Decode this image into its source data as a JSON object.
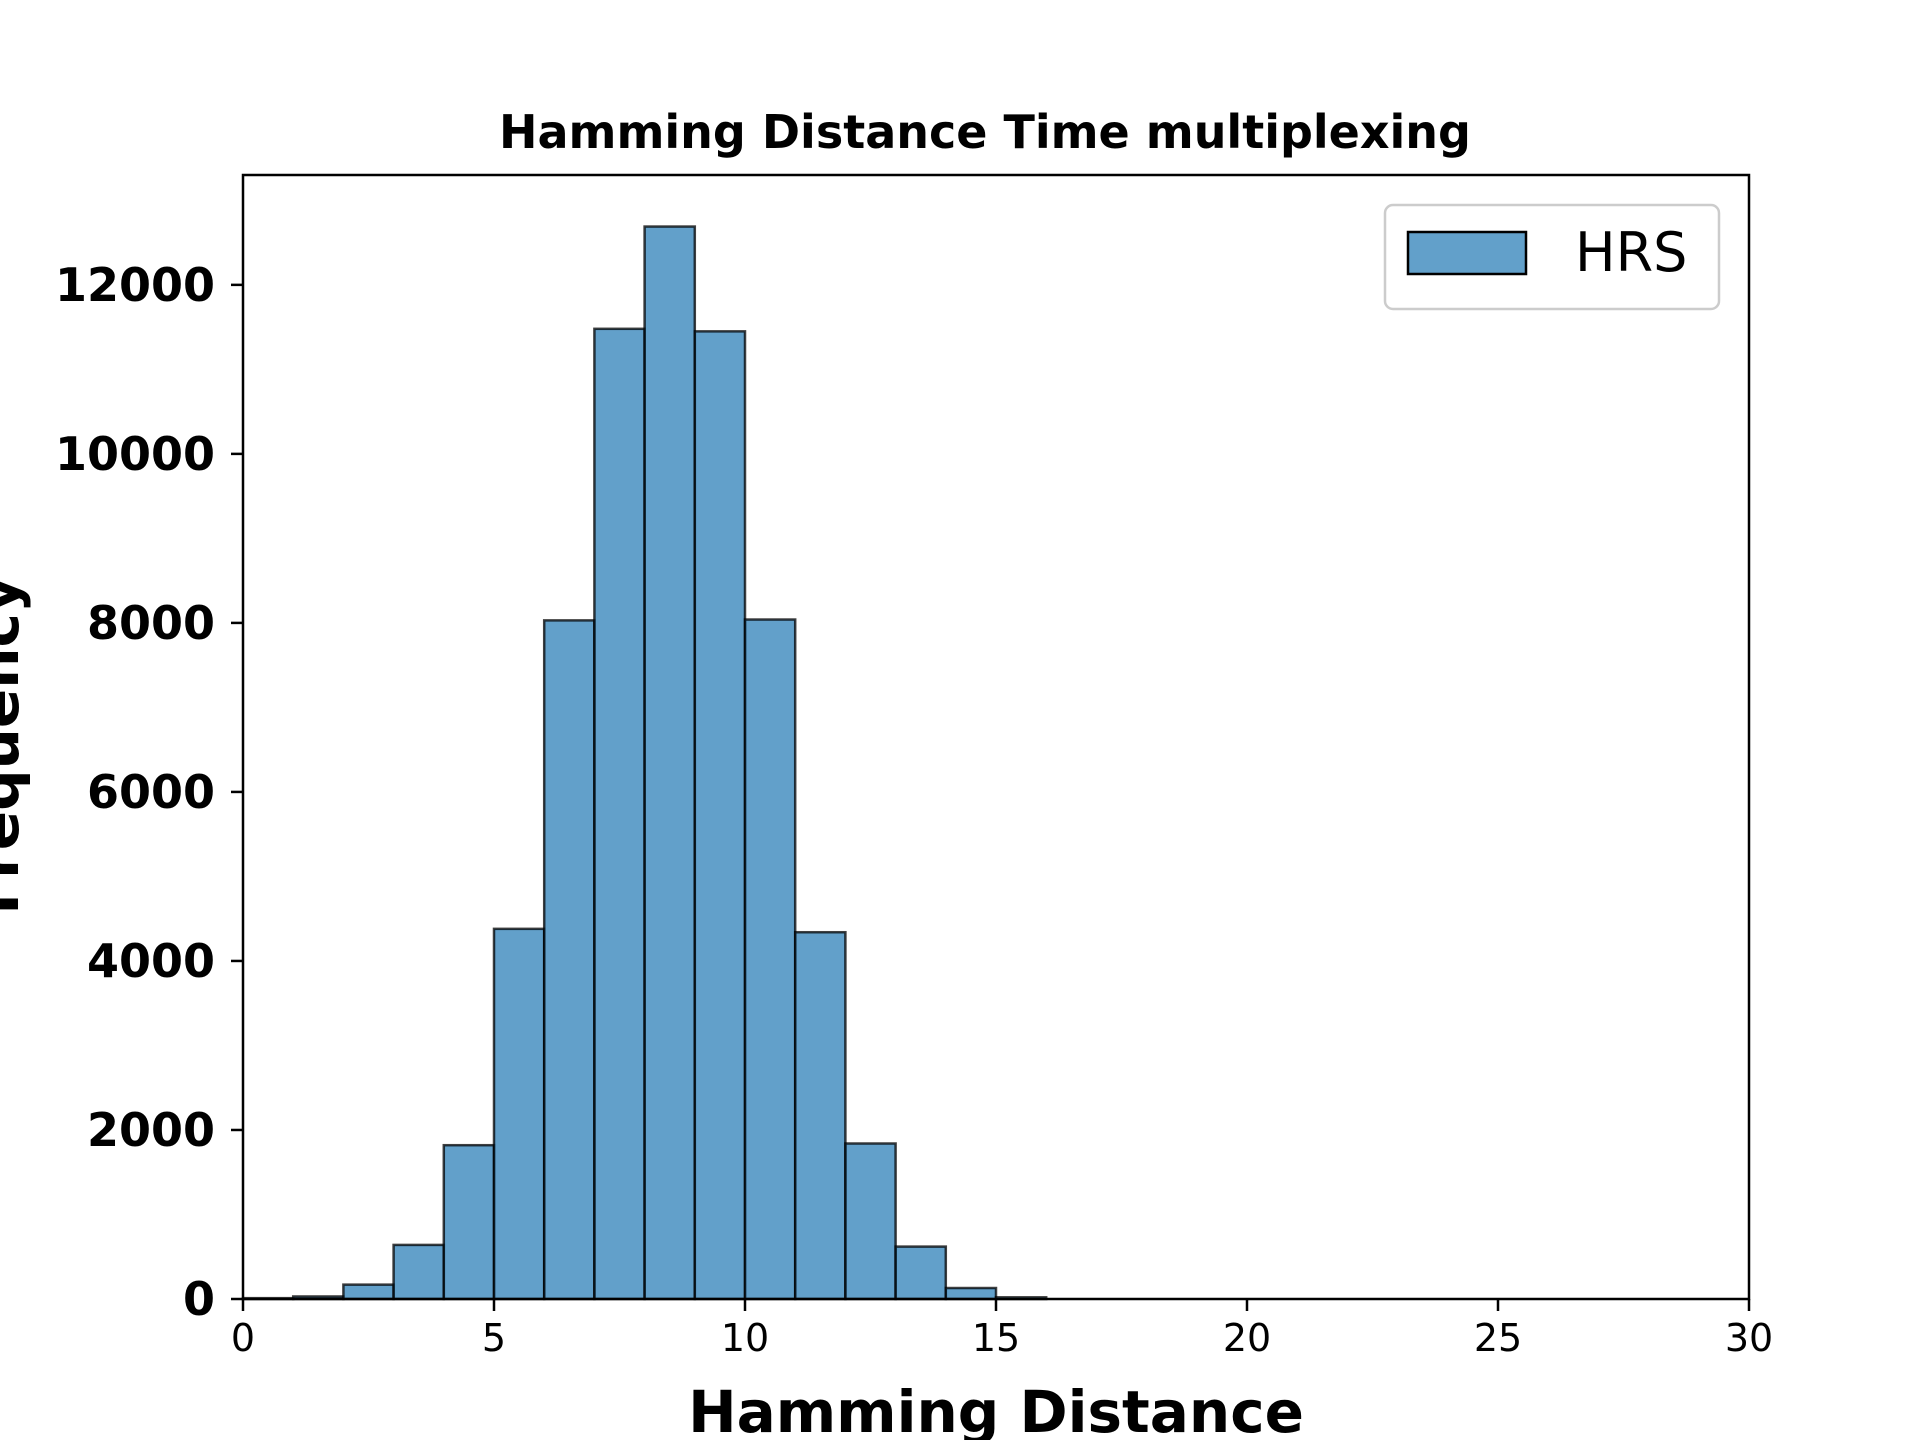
{
  "chart_data": {
    "type": "bar",
    "title": "Hamming Distance Time multiplexing",
    "xlabel": "Hamming Distance",
    "ylabel": "Frequency",
    "xlim": [
      0,
      30
    ],
    "ylim": [
      0,
      13300
    ],
    "xticks": [
      0,
      5,
      10,
      15,
      20,
      25,
      30
    ],
    "xtick_labels": [
      "0",
      "5",
      "10",
      "15",
      "20",
      "25",
      "30"
    ],
    "yticks": [
      0,
      2000,
      4000,
      6000,
      8000,
      10000,
      12000
    ],
    "ytick_labels": [
      "0",
      "2000",
      "4000",
      "6000",
      "8000",
      "10000",
      "12000"
    ],
    "grid": false,
    "legend_position": "top-right",
    "bar_color": "#1f77b4",
    "bar_opacity": 0.7,
    "edge_color": "#000000",
    "series": [
      {
        "name": "HRS",
        "bin_edges": [
          0,
          1,
          2,
          3,
          4,
          5,
          6,
          7,
          8,
          9,
          10,
          11,
          12,
          13,
          14,
          15,
          16
        ],
        "values": [
          10,
          30,
          170,
          640,
          1820,
          4380,
          8030,
          11480,
          12690,
          11450,
          8040,
          4340,
          1840,
          620,
          130,
          20
        ]
      }
    ]
  }
}
